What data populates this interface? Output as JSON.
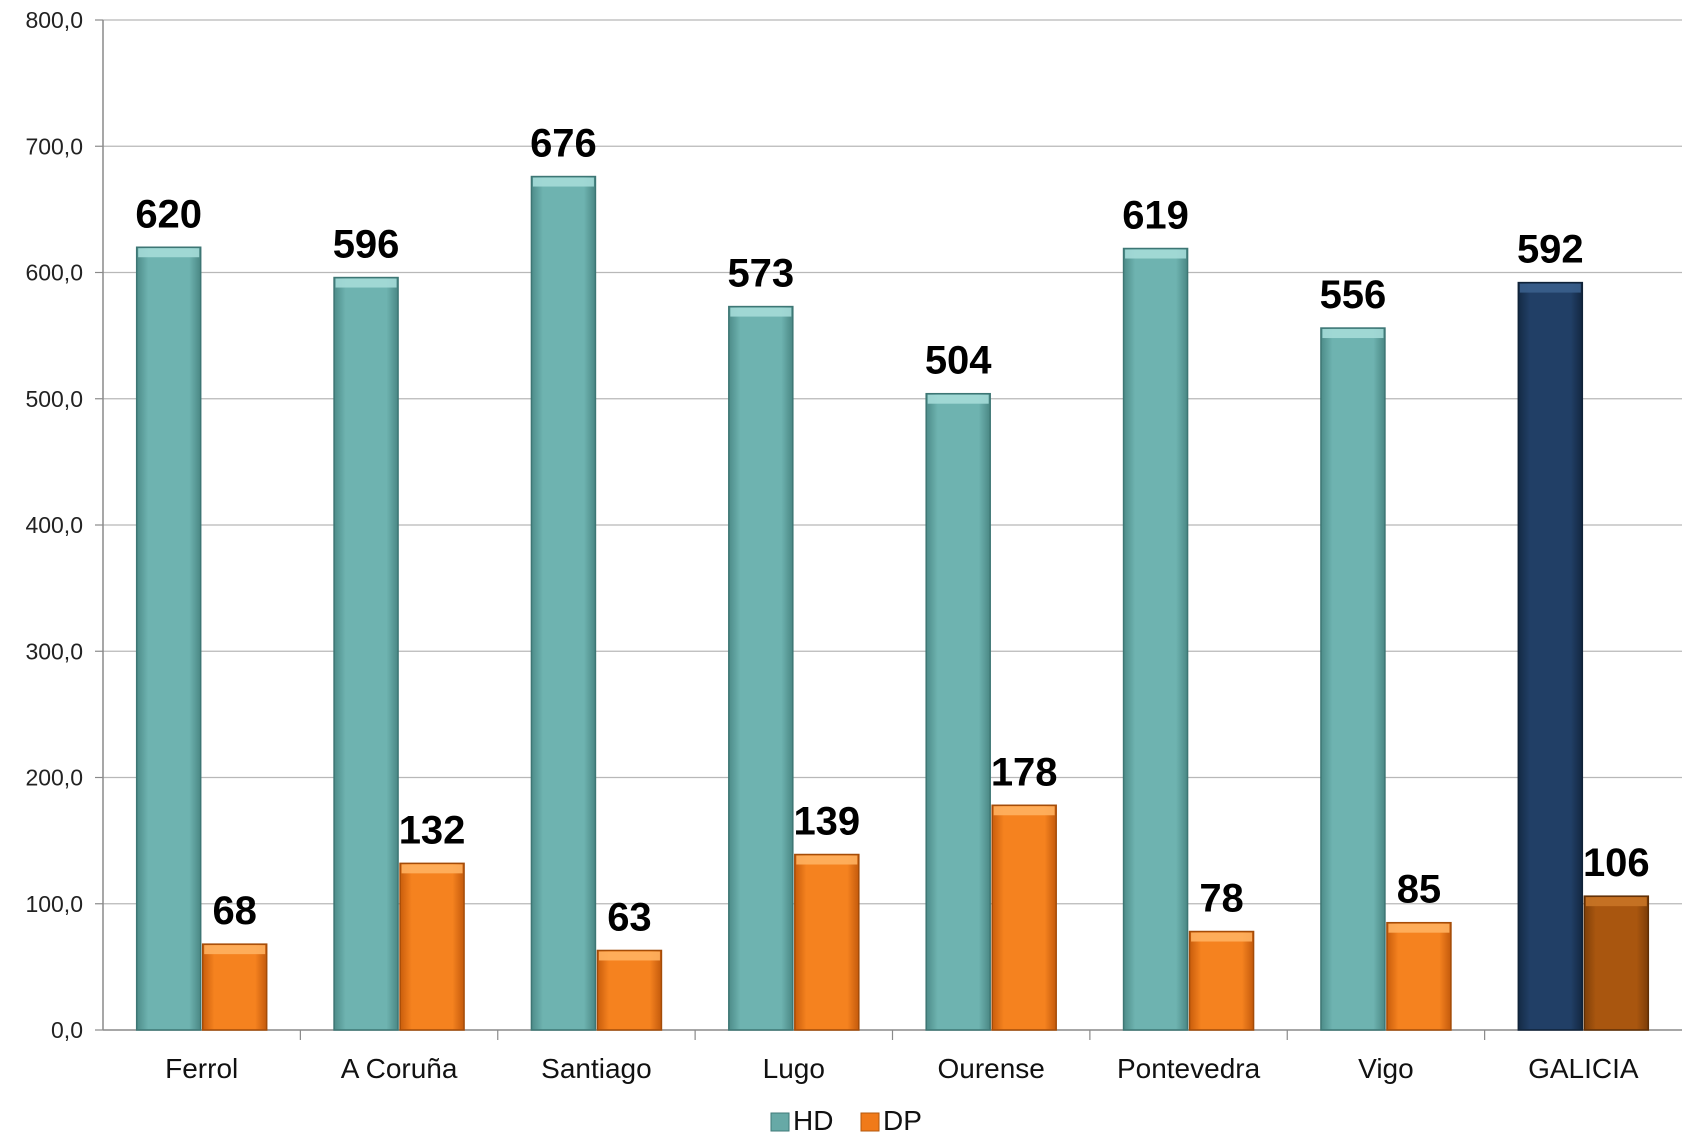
{
  "chart_data": {
    "type": "bar",
    "categories": [
      "Ferrol",
      "A Coruña",
      "Santiago",
      "Lugo",
      "Ourense",
      "Pontevedra",
      "Vigo",
      "GALICIA"
    ],
    "series": [
      {
        "name": "HD",
        "values": [
          620,
          596,
          676,
          573,
          504,
          619,
          556,
          592
        ],
        "color": "#67a9a6",
        "highlight_color": "#1f3a5f"
      },
      {
        "name": "DP",
        "values": [
          68,
          132,
          63,
          139,
          178,
          78,
          85,
          106
        ],
        "color": "#f07a1a",
        "highlight_color": "#a3530f"
      }
    ],
    "highlight_category": "GALICIA",
    "data_labels": {
      "HD": [
        "620",
        "596",
        "676",
        "573",
        "504",
        "619",
        "556",
        "592"
      ],
      "DP": [
        "68",
        "132",
        "63",
        "139",
        "178",
        "78",
        "85",
        "106"
      ]
    },
    "y_ticks": [
      "0,0",
      "100,0",
      "200,0",
      "300,0",
      "400,0",
      "500,0",
      "600,0",
      "700,0",
      "800,0"
    ],
    "ylim": [
      0,
      800
    ],
    "y_step": 100,
    "grid": true,
    "legend_position": "bottom-center"
  },
  "legend": {
    "hd_label": "HD",
    "dp_label": "DP"
  }
}
